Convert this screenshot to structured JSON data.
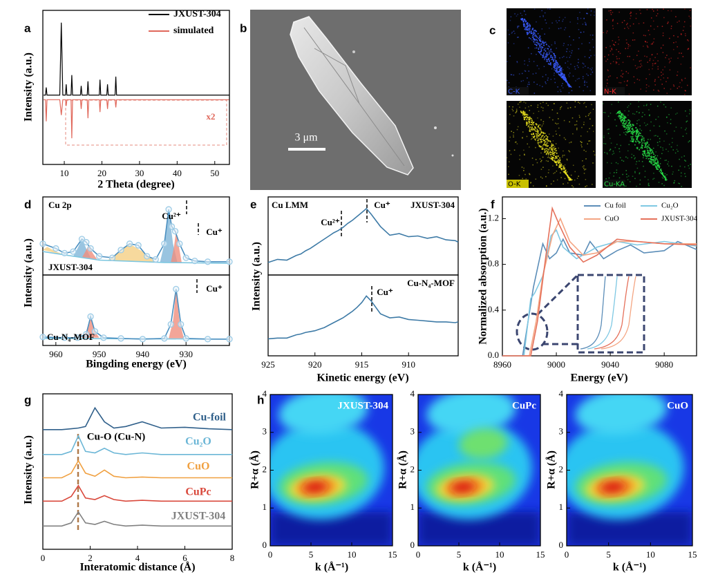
{
  "chart_data": [
    {
      "type": "line",
      "panel": "a",
      "ylabel": "Intensity (a.u.)",
      "xlabel": "2 Theta (degree)",
      "xlim": [
        4.3,
        53.9
      ],
      "ylim": [
        0,
        100
      ],
      "xticks": [
        10,
        20,
        30,
        40,
        50
      ],
      "legend": "upper right",
      "x": [
        4.5,
        5.0,
        5.2,
        5.4,
        8.8,
        9.2,
        9.6,
        10.3,
        10.5,
        10.7,
        11.8,
        12.0,
        12.2,
        14.3,
        14.5,
        14.7,
        16.1,
        16.3,
        16.5,
        19.3,
        19.5,
        19.7,
        21.3,
        21.5,
        21.7,
        23.5,
        23.7,
        23.9,
        27,
        35,
        45,
        53.8
      ],
      "series": [
        {
          "name": "JXUST-304",
          "color": "#000000",
          "values": [
            45,
            45,
            50,
            45,
            45,
            92,
            45,
            45,
            52,
            45,
            45,
            58,
            45,
            45,
            51,
            45,
            45,
            54,
            45,
            45,
            55,
            45,
            45,
            52,
            45,
            45,
            57,
            45,
            45,
            45,
            45,
            45
          ]
        },
        {
          "name": "simulated",
          "color": "#e0675a",
          "values": [
            42,
            42,
            28,
            42,
            42,
            32,
            42,
            42,
            38,
            42,
            42,
            17,
            42,
            42,
            36,
            42,
            42,
            30,
            42,
            42,
            34,
            42,
            42,
            36,
            42,
            42,
            37,
            42,
            42,
            42,
            42,
            42
          ]
        }
      ],
      "annotations": [
        {
          "text": "x2",
          "color": "#e0675a"
        }
      ]
    },
    {
      "type": "line",
      "panel": "d",
      "ylabel": "Intensity (a.u.)",
      "xlim": [
        963,
        920
      ],
      "ylim": [
        0,
        100
      ],
      "annotations": [
        "Cu 2p",
        "Cu²⁺",
        "Cu⁺",
        "JXUST-304"
      ],
      "series": [
        {
          "fill": "#f5cf84",
          "x": [
            963,
            962,
            960,
            957
          ],
          "values": [
            32,
            36,
            30,
            24
          ]
        },
        {
          "fill": "#7fb5d8",
          "x": [
            956,
            955,
            954,
            953,
            952
          ],
          "values": [
            24,
            34,
            46,
            34,
            22
          ]
        },
        {
          "fill": "#ef8f7e",
          "x": [
            954,
            953,
            952.5,
            951.5,
            950.5
          ],
          "values": [
            22,
            32,
            38,
            28,
            20
          ]
        },
        {
          "fill": "#f5cf84",
          "x": [
            948,
            945,
            943,
            940,
            937
          ],
          "values": [
            19,
            32,
            40,
            30,
            17
          ]
        },
        {
          "fill": "#7fb5d8",
          "x": [
            936,
            935,
            934,
            933,
            932
          ],
          "values": [
            16,
            40,
            84,
            40,
            16
          ]
        },
        {
          "fill": "#ef8f7e",
          "x": [
            933.5,
            932.8,
            932.3,
            931.6,
            931
          ],
          "values": [
            16,
            35,
            56,
            35,
            16
          ]
        },
        {
          "color": "#7cc6e0",
          "x": [
            963,
            950,
            935,
            920
          ],
          "values": [
            30,
            19,
            16,
            15
          ]
        },
        {
          "color": "#4a8fc0",
          "marker": "circle",
          "x": [
            963,
            960,
            958,
            956,
            954,
            953,
            952,
            950,
            947,
            945,
            943,
            941,
            939,
            937,
            935,
            934,
            933.3,
            932.5,
            931.5,
            930,
            928,
            925,
            920
          ],
          "values": [
            40,
            34,
            28,
            30,
            46,
            42,
            34,
            24,
            22,
            32,
            40,
            38,
            24,
            20,
            40,
            84,
            62,
            56,
            40,
            22,
            18,
            17,
            17
          ]
        }
      ]
    },
    {
      "type": "line",
      "xlabel": "Bingding energy (eV)",
      "xlim": [
        963,
        920
      ],
      "ylim": [
        0,
        100
      ],
      "xticks": [
        960,
        950,
        940,
        930
      ],
      "annotations": [
        "Cu⁺",
        "Cu-N₄-MOF"
      ],
      "series": [
        {
          "fill": "#ef8f7e",
          "x": [
            954,
            953,
            952,
            951,
            950
          ],
          "values": [
            11,
            20,
            41,
            20,
            11
          ]
        },
        {
          "fill": "#ef8f7e",
          "x": [
            934,
            933,
            932.3,
            931.5,
            930.5
          ],
          "values": [
            10,
            35,
            80,
            35,
            10
          ]
        },
        {
          "color": "#7cc6e0",
          "x": [
            963,
            920
          ],
          "values": [
            10,
            9
          ]
        },
        {
          "color": "#4a8fc0",
          "marker": "circle",
          "x": [
            963,
            958,
            955,
            953,
            952,
            951,
            949,
            945,
            940,
            935,
            933.5,
            932.3,
            931.2,
            930,
            925,
            920
          ],
          "values": [
            12,
            11,
            11,
            16,
            41,
            20,
            11,
            10,
            9,
            10,
            30,
            80,
            30,
            10,
            9,
            9
          ]
        }
      ]
    },
    {
      "type": "line",
      "panel": "e",
      "ylabel": "Intensity (a.u.)",
      "xlim": [
        925,
        904.7
      ],
      "ylim": [
        0,
        100
      ],
      "annotations": [
        "Cu LMM",
        "JXUST-304",
        "Cu²⁺",
        "Cu⁺"
      ],
      "x": [
        925,
        924,
        923,
        922,
        921.5,
        921,
        920.5,
        920,
        919.5,
        919,
        918.5,
        918,
        917.5,
        917,
        916.5,
        916,
        915.5,
        915,
        914.5,
        914,
        913,
        912,
        911,
        910,
        909,
        908,
        907,
        906,
        905,
        904.7
      ],
      "series": [
        {
          "color": "#3d7aa6",
          "values": [
            16,
            20,
            19,
            25,
            27,
            31,
            34,
            38,
            42,
            46,
            50,
            54,
            57,
            61,
            66,
            70,
            75,
            80,
            85,
            78,
            62,
            51,
            53,
            49,
            50,
            47,
            49,
            45,
            44,
            42
          ]
        }
      ]
    },
    {
      "type": "line",
      "xlabel": "Kinetic energy (eV)",
      "xlim": [
        925,
        904.7
      ],
      "ylim": [
        0,
        100
      ],
      "xticks": [
        925,
        920,
        915,
        910
      ],
      "annotations": [
        "Cu-N₄-MOF",
        "Cu⁺"
      ],
      "x": [
        925,
        924,
        923,
        922,
        921.5,
        921,
        920.5,
        920,
        919.5,
        919,
        918.5,
        918,
        917.5,
        917,
        916.5,
        916,
        915.5,
        915,
        914.5,
        914,
        913,
        912,
        911,
        910,
        909,
        908,
        907,
        906,
        905,
        904.7
      ],
      "series": [
        {
          "color": "#3d7aa6",
          "values": [
            21,
            22,
            22,
            26,
            27,
            29,
            30,
            31,
            33,
            35,
            38,
            41,
            44,
            47,
            51,
            55,
            60,
            66,
            74,
            68,
            52,
            47,
            48,
            45,
            44,
            43,
            42,
            42,
            41,
            42
          ]
        }
      ]
    },
    {
      "type": "line",
      "panel": "f",
      "xlabel": "Energy (eV)",
      "ylabel": "Normalized absorption (a.u.)",
      "xlim": [
        8960,
        9104
      ],
      "ylim": [
        0,
        1.39
      ],
      "xticks": [
        8960,
        9000,
        9040,
        9080
      ],
      "yticks": [
        {
          "value": 0,
          "label": "0.0"
        },
        0.4,
        0.8,
        1.2
      ],
      "legend": "upper right",
      "series": [
        {
          "name": "Cu foil",
          "color": "#5b8db8",
          "x": [
            8960,
            8975,
            8979,
            8983,
            8990,
            8995,
            9000,
            9005,
            9010,
            9020,
            9025,
            9035,
            9045,
            9055,
            9065,
            9080,
            9090,
            9104
          ],
          "values": [
            0,
            0,
            0.3,
            0.6,
            0.98,
            0.85,
            0.9,
            1.02,
            0.9,
            0.88,
            1.0,
            0.85,
            0.92,
            0.97,
            0.9,
            0.92,
            1.0,
            0.93
          ]
        },
        {
          "name": "Cu₂O",
          "color": "#7ec8e3",
          "x": [
            8960,
            8976,
            8981,
            8984,
            8990,
            8996,
            9000,
            9005,
            9015,
            9030,
            9045,
            9060,
            9080,
            9104
          ],
          "values": [
            0,
            0,
            0.5,
            0.55,
            0.7,
            1.05,
            1.1,
            0.95,
            0.85,
            0.95,
            1.0,
            0.97,
            1.0,
            0.96
          ]
        },
        {
          "name": "CuO",
          "color": "#f4a582",
          "x": [
            8960,
            8980,
            8985,
            8990,
            8997,
            9003,
            9010,
            9020,
            9030,
            9045,
            9060,
            9080,
            9104
          ],
          "values": [
            0,
            0,
            0.3,
            0.7,
            1.05,
            1.2,
            1.0,
            0.88,
            0.9,
            1.0,
            1.0,
            0.98,
            0.98
          ]
        },
        {
          "name": "JXUST-304",
          "color": "#e5705a",
          "x": [
            8960,
            8981,
            8986,
            8992,
            8997,
            9002,
            9010,
            9020,
            9030,
            9045,
            9060,
            9080,
            9104
          ],
          "values": [
            0,
            0,
            0.3,
            0.85,
            1.29,
            1.15,
            0.95,
            0.82,
            0.88,
            1.02,
            1.0,
            0.98,
            0.97
          ]
        }
      ]
    },
    {
      "type": "line",
      "panel": "g",
      "xlabel": "Interatomic distance (Å)",
      "ylabel": "Intensity (a.u.)",
      "xlim": [
        0,
        8
      ],
      "ylim": [
        0,
        100
      ],
      "xticks": [
        0,
        2,
        4,
        6,
        8
      ],
      "legend": "inline",
      "x": [
        0,
        0.8,
        1.2,
        1.5,
        1.8,
        2.2,
        2.6,
        3.0,
        3.5,
        4.2,
        5,
        6,
        7,
        8
      ],
      "series": [
        {
          "name": "Cu-foil",
          "color": "#2f5f8a",
          "values": [
            77,
            77,
            77.5,
            78,
            79,
            91,
            82,
            78,
            79,
            82,
            78,
            78.5,
            77.5,
            77
          ]
        },
        {
          "name": "Cu₂O",
          "color": "#6bb6d6",
          "values": [
            61,
            61,
            63,
            73,
            63,
            62,
            65,
            62,
            61,
            62,
            61,
            61,
            61,
            61
          ]
        },
        {
          "name": "CuO",
          "color": "#f0a040",
          "values": [
            46,
            46,
            49,
            57,
            49,
            47,
            51,
            47,
            46,
            46.5,
            46,
            46,
            46,
            46
          ]
        },
        {
          "name": "CuPc",
          "color": "#d9483b",
          "values": [
            31,
            31,
            34,
            41,
            33,
            32,
            34.5,
            32,
            31,
            31.5,
            31,
            31,
            31,
            31
          ]
        },
        {
          "name": "JXUST-304",
          "color": "#808080",
          "values": [
            15,
            15,
            17,
            24,
            17,
            16,
            18,
            16,
            15,
            15.5,
            15,
            15,
            15,
            15
          ]
        }
      ],
      "annotations": [
        "Cu-O (Cu-N)"
      ]
    },
    {
      "type": "contour",
      "panel": "h",
      "xlabel": "k (Å⁻¹)",
      "ylabel": "R+α (Å)",
      "xlim": [
        0,
        15
      ],
      "ylim": [
        0,
        4
      ],
      "xticks": [
        0,
        5,
        10,
        15
      ],
      "yticks": [
        0,
        1,
        2,
        3,
        4
      ],
      "annotations": [
        {
          "text": "JXUST-304",
          "color": "#ffffff"
        }
      ]
    },
    {
      "type": "contour",
      "xlabel": "k (Å⁻¹)",
      "ylabel": "R+α (Å)",
      "xlim": [
        0,
        15
      ],
      "ylim": [
        0,
        4
      ],
      "xticks": [
        0,
        5,
        10,
        15
      ],
      "yticks": [
        0,
        1,
        2,
        3,
        4
      ],
      "annotations": [
        {
          "text": "CuPc",
          "color": "#ffffff"
        }
      ]
    },
    {
      "type": "contour",
      "xlabel": "k (Å⁻¹)",
      "ylabel": "R+α (Å)",
      "xlim": [
        0,
        15
      ],
      "ylim": [
        0,
        4
      ],
      "xticks": [
        0,
        5,
        10,
        15
      ],
      "yticks": [
        0,
        1,
        2,
        3,
        4
      ],
      "annotations": [
        {
          "text": "CuO",
          "color": "#ffffff"
        }
      ]
    }
  ],
  "sem_image": {
    "panel": "b",
    "scale_bar": "3 μm"
  },
  "eds_maps": {
    "panel": "c",
    "maps": [
      "C-K",
      "N-K",
      "O-K",
      "Cu-KA"
    ]
  }
}
